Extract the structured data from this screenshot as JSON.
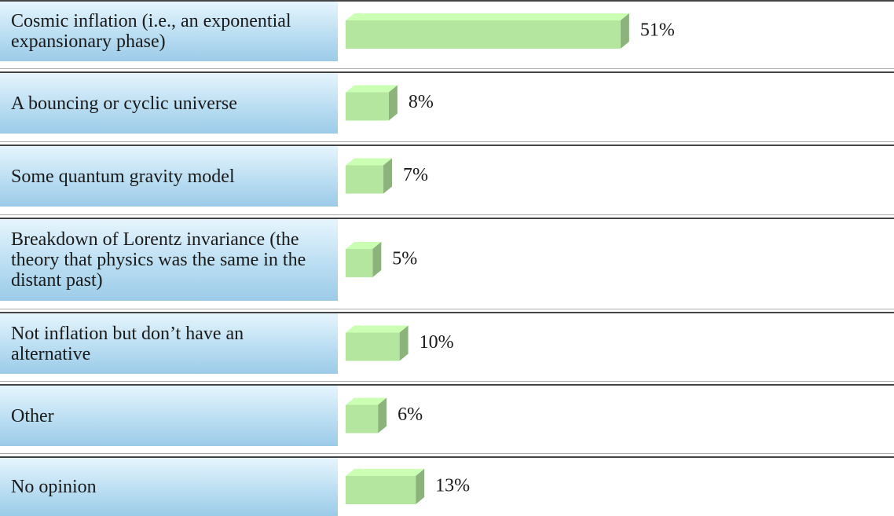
{
  "chart_data": {
    "type": "bar",
    "categories": [
      "Cosmic inflation (i.e., an exponential expansionary phase)",
      "A bouncing or cyclic universe",
      "Some quantum gravity model",
      "Breakdown of Lorentz invariance (the theory that physics was the same in the distant past)",
      "Not inflation but don’t have an alternative",
      "Other",
      "No opinion"
    ],
    "values": [
      51,
      8,
      7,
      5,
      10,
      6,
      13
    ],
    "value_labels": [
      "51%",
      "8%",
      "7%",
      "5%",
      "10%",
      "6%",
      "13%"
    ],
    "color": "#b5e6a0"
  }
}
